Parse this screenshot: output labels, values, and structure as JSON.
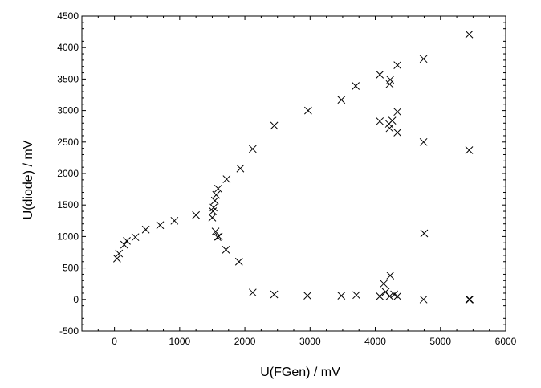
{
  "chart_data": {
    "type": "scatter",
    "title": "",
    "xlabel": "U(FGen) / mV",
    "ylabel": "U(diode) / mV",
    "xlim": [
      -500,
      6000
    ],
    "ylim": [
      -500,
      4500
    ],
    "x_ticks": [
      0,
      1000,
      2000,
      3000,
      4000,
      5000,
      6000
    ],
    "y_ticks": [
      -500,
      0,
      500,
      1000,
      1500,
      2000,
      2500,
      3000,
      3500,
      4000,
      4500
    ],
    "x_tick_labels": [
      "0",
      "1000",
      "2000",
      "3000",
      "4000",
      "5000",
      "6000"
    ],
    "y_tick_labels": [
      "-500",
      "0",
      "500",
      "1000",
      "1500",
      "2000",
      "2500",
      "3000",
      "3500",
      "4000",
      "4500"
    ],
    "grid": false,
    "marker": "x",
    "series": [
      {
        "x": [
          40,
          70,
          150,
          190,
          320,
          480,
          700,
          920,
          1250,
          1500,
          1510,
          1520,
          1540,
          1560,
          1590,
          1720,
          1930,
          2120,
          2450,
          2970,
          3480,
          3700,
          4070,
          4220,
          4230,
          4340,
          4740,
          5440,
          1550,
          1580,
          1600,
          1710,
          1910,
          2120,
          2450,
          2960,
          3480,
          3710,
          4070,
          4130,
          4160,
          4220,
          4230,
          4290,
          4340,
          4740,
          5440,
          4070,
          4210,
          4340,
          4740,
          5440,
          4220,
          4260,
          4340,
          4750,
          5450
        ],
        "y": [
          650,
          730,
          870,
          930,
          990,
          1110,
          1180,
          1250,
          1340,
          1300,
          1400,
          1460,
          1570,
          1660,
          1760,
          1910,
          2080,
          2390,
          2760,
          3000,
          3170,
          3390,
          3570,
          3420,
          3490,
          3720,
          3820,
          4210,
          1080,
          990,
          1000,
          790,
          600,
          110,
          80,
          60,
          60,
          70,
          50,
          250,
          120,
          50,
          380,
          80,
          50,
          0,
          0,
          2830,
          2790,
          2980,
          2500,
          2370,
          2720,
          2840,
          2650,
          1050,
          0
        ]
      }
    ]
  }
}
